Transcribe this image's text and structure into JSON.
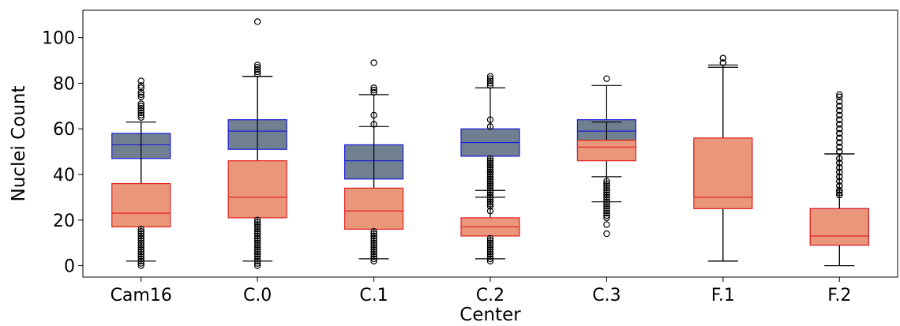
{
  "chart_data": {
    "type": "box",
    "xlabel": "Center",
    "ylabel": "Nuclei Count",
    "ylim": [
      -5,
      112
    ],
    "yticks": [
      0,
      20,
      40,
      60,
      80,
      100
    ],
    "categories": [
      "Cam16",
      "C.0",
      "C.1",
      "C.2",
      "C.3",
      "F.1",
      "F.2"
    ],
    "grid": false,
    "legend": "none",
    "series": [
      {
        "color_fill": "#708090",
        "color_edge": "#1a1adb",
        "color_median": "#1a1adb",
        "boxes": [
          {
            "q1": 47,
            "median": 53,
            "q3": 58,
            "whislo": 33,
            "whishi": 63,
            "fliers": [
              65,
              66,
              67,
              68,
              69,
              70,
              71,
              74,
              75,
              76,
              78,
              79,
              81
            ]
          },
          {
            "q1": 51,
            "median": 59,
            "q3": 64,
            "whislo": 33,
            "whishi": 83,
            "fliers": [
              84,
              85,
              86,
              87,
              88,
              107
            ]
          },
          {
            "q1": 38,
            "median": 46,
            "q3": 53,
            "whislo": 20,
            "whishi": 75,
            "fliers": [
              76,
              77,
              78,
              89
            ]
          },
          {
            "q1": 48,
            "median": 54,
            "q3": 60,
            "whislo": 30,
            "whishi": 78,
            "fliers": [
              24,
              26,
              27,
              28,
              29,
              30,
              31,
              32,
              33,
              34,
              35,
              36,
              37,
              38,
              39,
              40,
              41,
              42,
              43,
              44,
              45,
              46,
              47,
              61,
              64,
              79,
              80,
              81,
              82,
              83
            ]
          },
          {
            "q1": 50,
            "median": 59,
            "q3": 64,
            "whislo": 39,
            "whishi": 79,
            "fliers": [
              14,
              18,
              21,
              22,
              23,
              24,
              25,
              26,
              27,
              28,
              29,
              30,
              31,
              32,
              33,
              34,
              35,
              36,
              37,
              82
            ]
          },
          {
            "q1": 31,
            "median": 44,
            "q3": 54,
            "whislo": 2,
            "whishi": 88,
            "fliers": [
              89,
              91
            ]
          },
          {
            "q1": 9,
            "median": 18,
            "q3": 25,
            "whislo": 0,
            "whishi": 49,
            "fliers": [
              31,
              32,
              33,
              35,
              37,
              39,
              41,
              43,
              45,
              47,
              50,
              52,
              54,
              56,
              58,
              60,
              62,
              64,
              66,
              68,
              70,
              72,
              74,
              75
            ]
          }
        ]
      },
      {
        "color_fill": "#e9967a",
        "color_edge": "#e32020",
        "color_median": "#e32020",
        "boxes": [
          {
            "q1": 17,
            "median": 23,
            "q3": 36,
            "whislo": 2,
            "whishi": 63,
            "fliers": [
              0,
              1,
              2,
              3,
              4,
              5,
              6,
              7,
              8,
              9,
              10,
              11,
              12,
              13,
              14,
              15,
              16
            ]
          },
          {
            "q1": 21,
            "median": 30,
            "q3": 46,
            "whislo": 2,
            "whishi": 83,
            "fliers": [
              0,
              1,
              2,
              3,
              4,
              5,
              6,
              7,
              8,
              9,
              10,
              11,
              12,
              13,
              14,
              15,
              16,
              17,
              18,
              19,
              20
            ]
          },
          {
            "q1": 16,
            "median": 24,
            "q3": 34,
            "whislo": 3,
            "whishi": 61,
            "fliers": [
              2,
              3,
              4,
              5,
              6,
              7,
              8,
              9,
              10,
              11,
              12,
              13,
              14,
              15,
              62,
              66
            ]
          },
          {
            "q1": 13,
            "median": 17,
            "q3": 21,
            "whislo": 3,
            "whishi": 33,
            "fliers": [
              2,
              3,
              4,
              5,
              6,
              7,
              8,
              9,
              10,
              11,
              12,
              34,
              35,
              36,
              37,
              38,
              39,
              40,
              41,
              42,
              43,
              44,
              45,
              46
            ]
          },
          {
            "q1": 46,
            "median": 52,
            "q3": 55,
            "whislo": 28,
            "whishi": 63,
            "fliers": []
          },
          {
            "q1": 25,
            "median": 30,
            "q3": 56,
            "whislo": 2,
            "whishi": 87,
            "fliers": [
              89,
              91
            ]
          },
          {
            "q1": 9,
            "median": 13,
            "q3": 25,
            "whislo": 0,
            "whishi": 49,
            "fliers": [
              31,
              33,
              35,
              37,
              39,
              41,
              43,
              45,
              47,
              50,
              52,
              54,
              56,
              58,
              60,
              62,
              64,
              66,
              68,
              70
            ]
          }
        ]
      }
    ]
  }
}
